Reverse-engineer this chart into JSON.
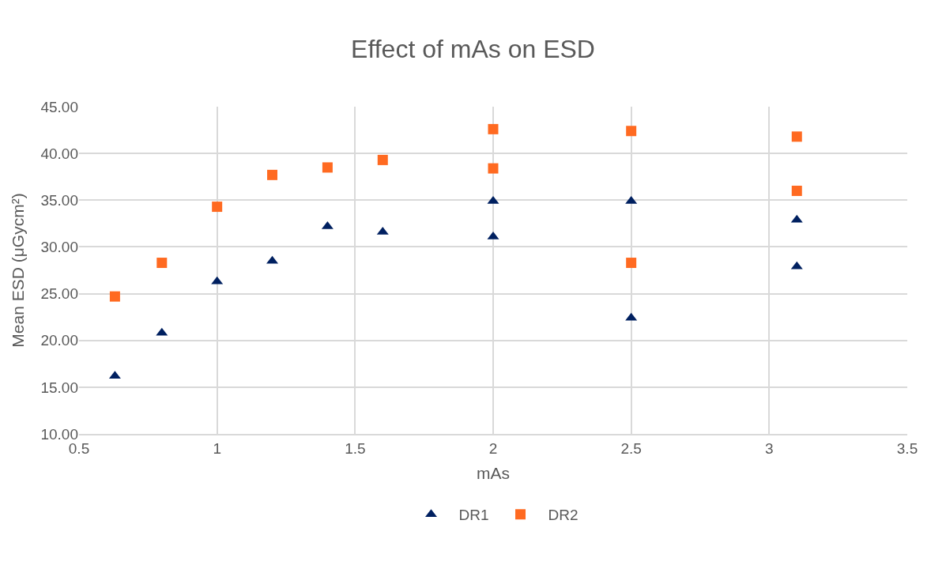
{
  "chart_data": {
    "type": "scatter",
    "title": "Effect of mAs on ESD",
    "xlabel": "mAs",
    "ylabel": "Mean ESD (μGycm²)",
    "xlim": [
      0.5,
      3.5
    ],
    "xticks": [
      0.5,
      1,
      1.5,
      2,
      2.5,
      3,
      3.5
    ],
    "ylim": [
      10,
      45
    ],
    "yticks": [
      {
        "value": 10,
        "label": "10.00"
      },
      {
        "value": 15,
        "label": "15.00"
      },
      {
        "value": 20,
        "label": "20.00"
      },
      {
        "value": 25,
        "label": "25.00"
      },
      {
        "value": 30,
        "label": "30.00"
      },
      {
        "value": 35,
        "label": "35.00"
      },
      {
        "value": 40,
        "label": "40.00"
      },
      {
        "value": 45,
        "label": "45.00"
      }
    ],
    "grid": true,
    "legend": "bottom",
    "series": [
      {
        "name": "DR1",
        "color": "#002060",
        "marker": "triangle",
        "x": [
          0.63,
          0.8,
          1,
          1.2,
          1.4,
          1.6,
          2,
          2,
          2.5,
          2.5,
          3.1,
          3.1
        ],
        "values": [
          16.2,
          20.8,
          26.3,
          28.5,
          32.2,
          31.6,
          34.9,
          31.1,
          34.9,
          22.4,
          32.9,
          27.9
        ]
      },
      {
        "name": "DR2",
        "color": "#ff6a21",
        "marker": "square",
        "x": [
          0.63,
          0.8,
          1,
          1.2,
          1.4,
          1.6,
          2,
          2,
          2.5,
          2.5,
          3.1,
          3.1
        ],
        "values": [
          24.7,
          28.3,
          34.3,
          37.7,
          38.5,
          39.3,
          42.6,
          38.4,
          42.4,
          28.3,
          41.8,
          36.0
        ]
      }
    ]
  }
}
